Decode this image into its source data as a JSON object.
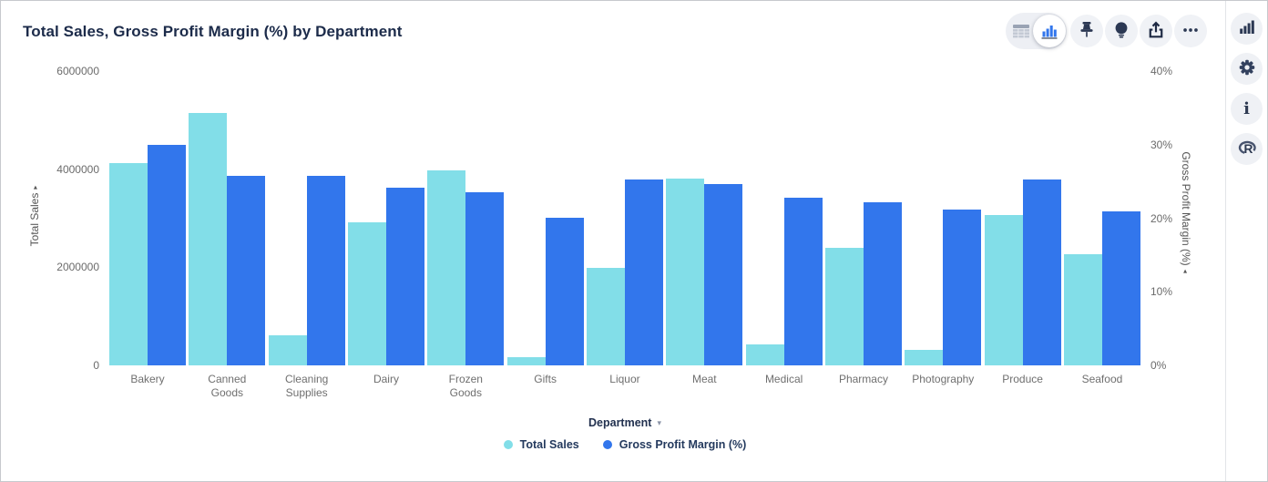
{
  "header": {
    "title": "Total Sales, Gross Profit Margin (%) by Department"
  },
  "toolbar": {
    "view_toggle": {
      "options": [
        "table-view",
        "chart-view"
      ],
      "selected": "chart-view"
    },
    "buttons": [
      "pin",
      "lightbulb",
      "share",
      "more-options"
    ]
  },
  "right_rail": {
    "buttons": [
      "charts",
      "settings",
      "info",
      "r-logo"
    ]
  },
  "colors": {
    "total_sales": "#82dee8",
    "gross_profit_margin": "#3276ec",
    "title_text": "#1c2b4a",
    "toolbar_icon": "#2b3853"
  },
  "chart_data": {
    "type": "bar",
    "title": "Total Sales, Gross Profit Margin (%) by Department",
    "categories": [
      "Bakery",
      "Canned Goods",
      "Cleaning Supplies",
      "Dairy",
      "Frozen Goods",
      "Gifts",
      "Liquor",
      "Meat",
      "Medical",
      "Pharmacy",
      "Photography",
      "Produce",
      "Seafood"
    ],
    "series": [
      {
        "name": "Total Sales",
        "axis": "left",
        "color": "#82dee8",
        "values": [
          4120000,
          5150000,
          615000,
          2920000,
          3980000,
          170000,
          1980000,
          3800000,
          430000,
          2400000,
          320000,
          3060000,
          2260000
        ]
      },
      {
        "name": "Gross Profit Margin (%)",
        "axis": "right",
        "color": "#3276ec",
        "values": [
          30.0,
          25.8,
          25.7,
          24.1,
          23.5,
          20.1,
          25.3,
          24.6,
          22.8,
          22.2,
          21.2,
          25.3,
          20.9
        ]
      }
    ],
    "left_axis": {
      "label": "Total Sales",
      "max": 6000000,
      "ticks": [
        {
          "label": "0",
          "value": 0
        },
        {
          "label": "2000000",
          "value": 2000000
        },
        {
          "label": "4000000",
          "value": 4000000
        },
        {
          "label": "6000000",
          "value": 6000000
        }
      ]
    },
    "right_axis": {
      "label": "Gross Profit Margin (%)",
      "max": 40,
      "ticks": [
        {
          "label": "0%",
          "value": 0
        },
        {
          "label": "10%",
          "value": 10
        },
        {
          "label": "20%",
          "value": 20
        },
        {
          "label": "30%",
          "value": 30
        },
        {
          "label": "40%",
          "value": 40
        }
      ]
    },
    "xlabel": "Department",
    "legend": [
      "Total Sales",
      "Gross Profit Margin (%)"
    ],
    "legend_position": "bottom-center",
    "grid": false
  }
}
